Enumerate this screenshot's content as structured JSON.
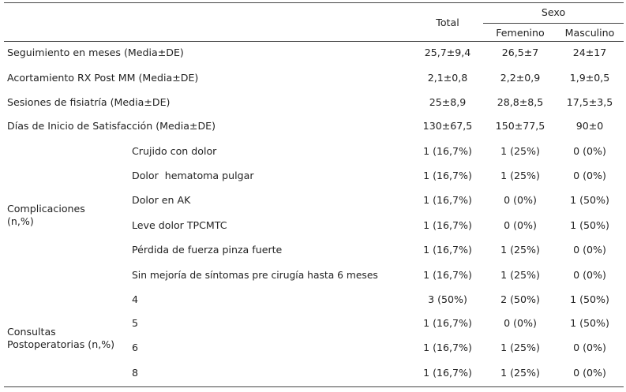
{
  "header": {
    "total": "Total",
    "sexo": "Sexo",
    "femenino": "Femenino",
    "masculino": "Masculino"
  },
  "rows_single": [
    {
      "label": "Seguimiento en meses (Media±DE)",
      "total": "25,7±9,4",
      "fem": "26,5±7",
      "masc": "24±17"
    },
    {
      "label": "Acortamiento RX Post MM (Media±DE)",
      "total": "2,1±0,8",
      "fem": "2,2±0,9",
      "masc": "1,9±0,5"
    },
    {
      "label": "Sesiones de fisiatría (Media±DE)",
      "total": "25±8,9",
      "fem": "28,8±8,5",
      "masc": "17,5±3,5"
    },
    {
      "label": "Días de Inicio de Satisfacción (Media±DE)",
      "total": "130±67,5",
      "fem": "150±77,5",
      "masc": "90±0"
    }
  ],
  "complicaciones": {
    "group_line1": "Complicaciones",
    "group_line2": "(n,%)",
    "rows": [
      {
        "label": "Crujido con dolor",
        "total": "1 (16,7%)",
        "fem": "1 (25%)",
        "masc": "0 (0%)"
      },
      {
        "label": "Dolor  hematoma pulgar",
        "total": "1 (16,7%)",
        "fem": "1 (25%)",
        "masc": "0 (0%)"
      },
      {
        "label": "Dolor en AK",
        "total": "1 (16,7%)",
        "fem": "0 (0%)",
        "masc": "1 (50%)"
      },
      {
        "label": "Leve dolor TPCMTC",
        "total": "1 (16,7%)",
        "fem": "0 (0%)",
        "masc": "1 (50%)"
      },
      {
        "label": "Pérdida de fuerza pinza fuerte",
        "total": "1 (16,7%)",
        "fem": "1 (25%)",
        "masc": "0 (0%)"
      },
      {
        "label": "Sin mejoría de síntomas pre cirugía hasta 6 meses",
        "total": "1 (16,7%)",
        "fem": "1 (25%)",
        "masc": "0 (0%)"
      }
    ]
  },
  "consultas": {
    "group_line1": "Consultas",
    "group_line2": "Postoperatorias (n,%)",
    "rows": [
      {
        "label": "4",
        "total": "3 (50%)",
        "fem": "2 (50%)",
        "masc": "1 (50%)"
      },
      {
        "label": "5",
        "total": "1 (16,7%)",
        "fem": "0 (0%)",
        "masc": "1 (50%)"
      },
      {
        "label": "6",
        "total": "1 (16,7%)",
        "fem": "1 (25%)",
        "masc": "0 (0%)"
      },
      {
        "label": "8",
        "total": "1 (16,7%)",
        "fem": "1 (25%)",
        "masc": "0 (0%)"
      }
    ]
  }
}
